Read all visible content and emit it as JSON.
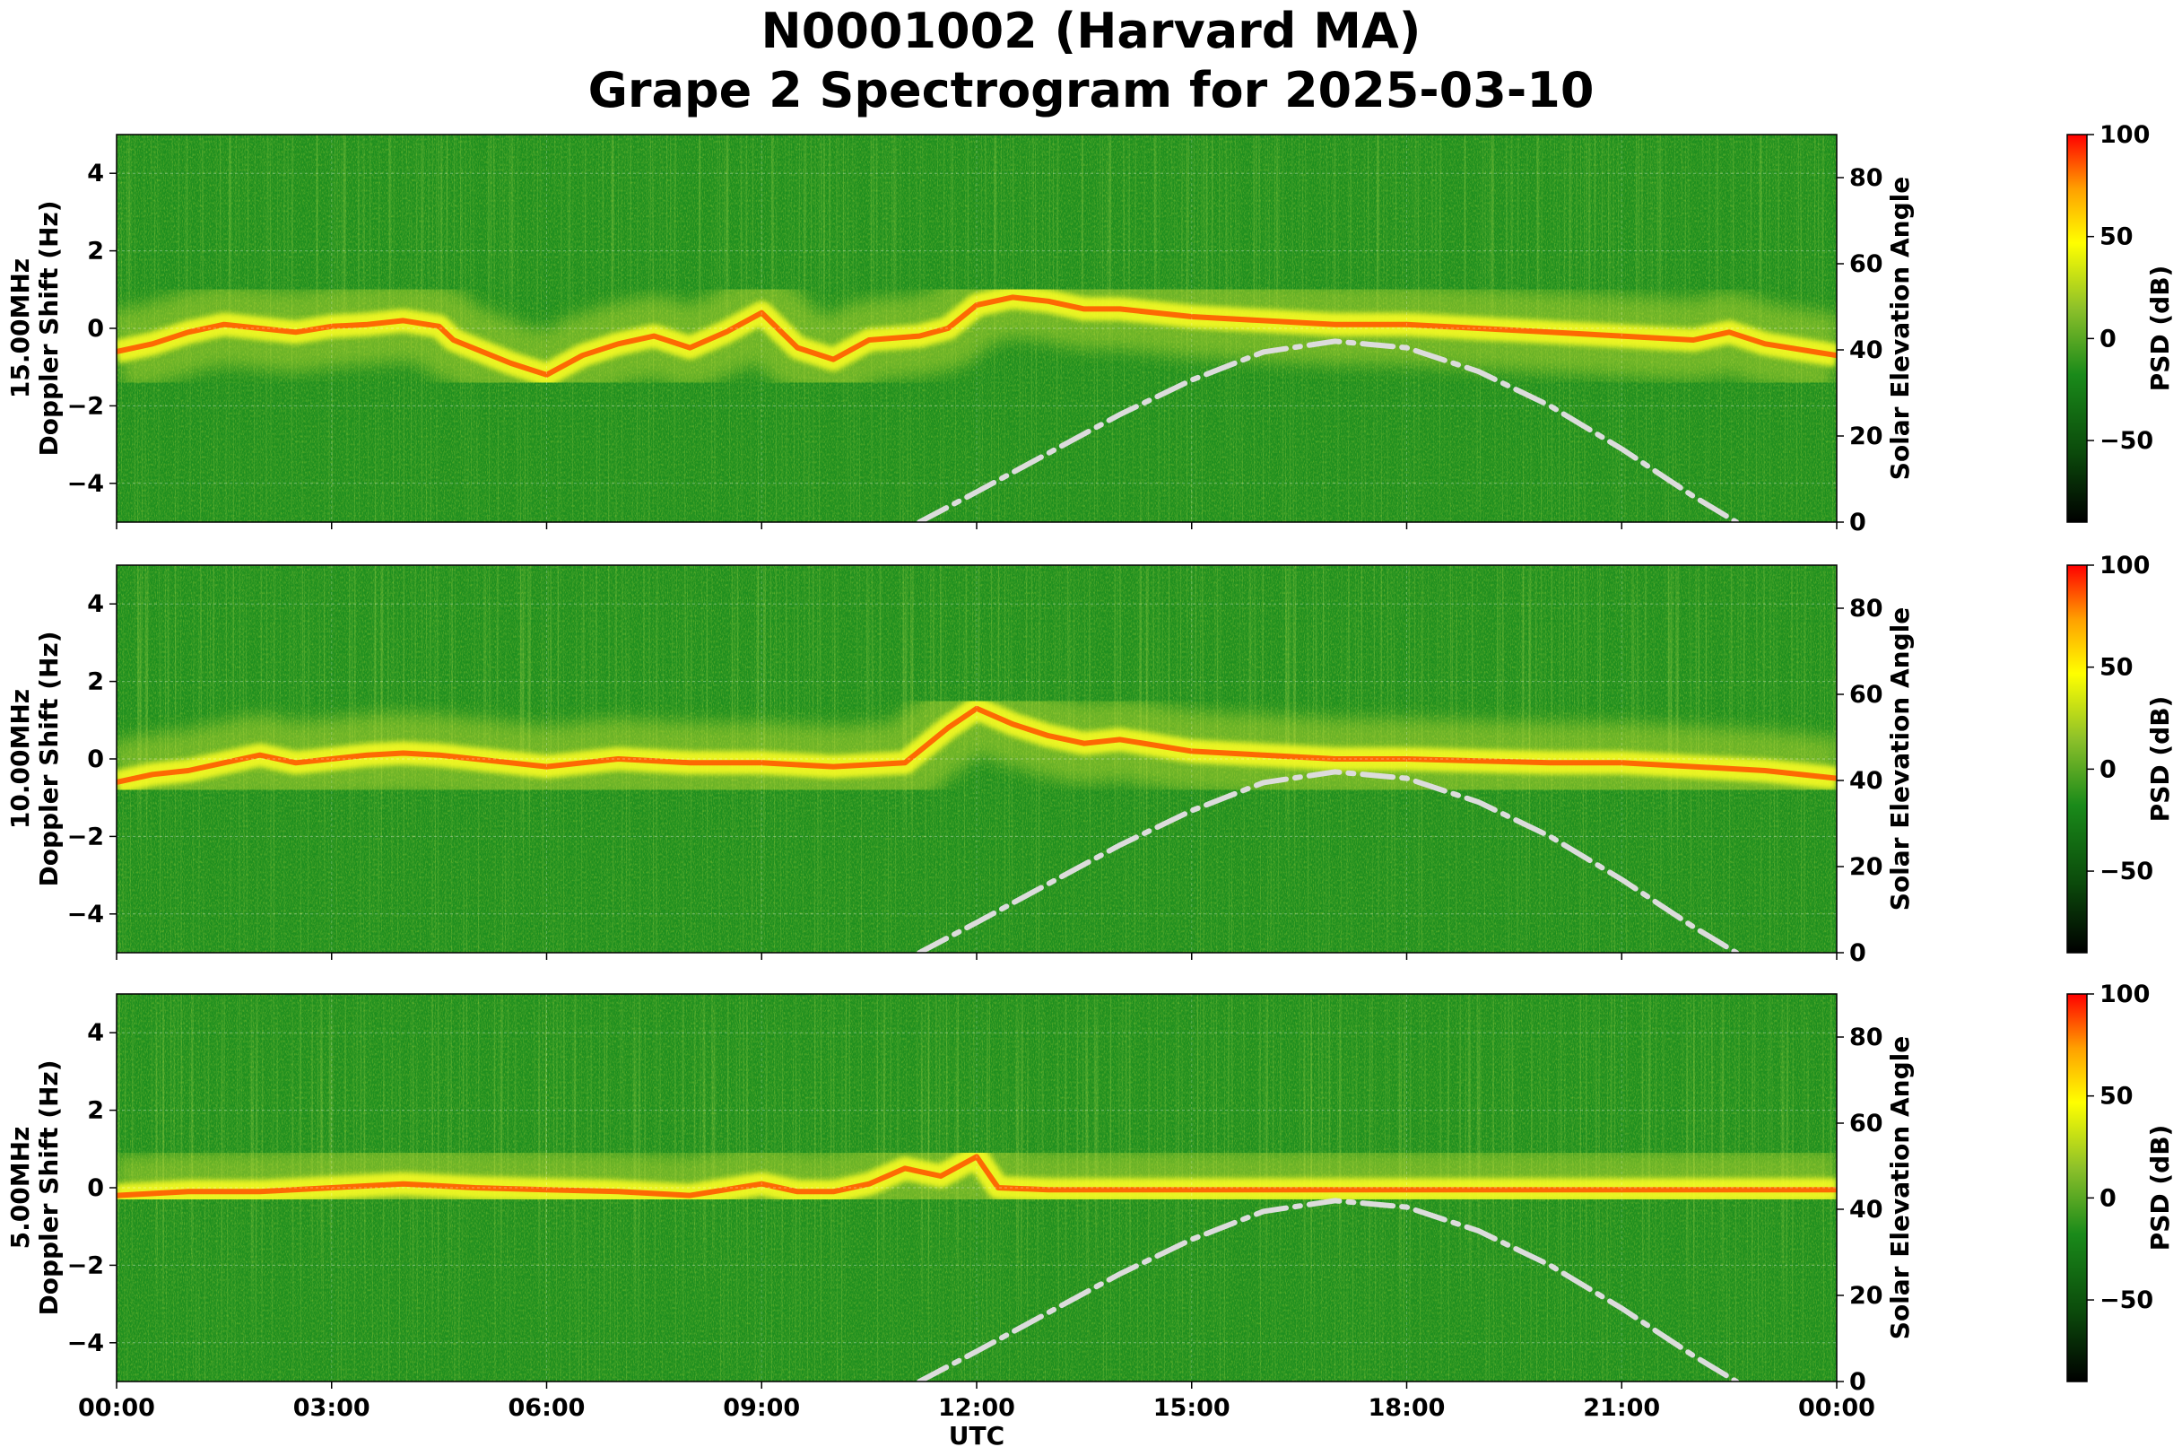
{
  "title": {
    "line1": "N0001002 (Harvard MA)",
    "line2": "Grape 2 Spectrogram for 2025-03-10"
  },
  "colors": {
    "colormap": [
      "#000000",
      "#0a5f0a",
      "#1a8f1a",
      "#7ab82a",
      "#ffff00",
      "#ff9900",
      "#ff0000"
    ],
    "solar_curve": "#dcdcdc",
    "background_green": "#1f8f1f"
  },
  "chart_data": [
    {
      "type": "heatmap",
      "panel_label": "15.00MHz",
      "ylabel": "Doppler Shift (Hz)",
      "y2label": "Solar Elevation Angle",
      "xlabel": "",
      "colorbar_label": "PSD (dB)",
      "ylim": [
        -5,
        5
      ],
      "y2lim": [
        0,
        90
      ],
      "clim": [
        -90,
        100
      ],
      "x_range_hours": [
        0,
        24
      ],
      "yticks": [
        -4,
        -2,
        0,
        2,
        4
      ],
      "y2ticks": [
        0,
        20,
        40,
        60,
        80
      ],
      "colorbar_ticks": [
        -50,
        0,
        50,
        100
      ],
      "grid": true,
      "doppler_trace_hz": [
        [
          0,
          -0.6
        ],
        [
          0.5,
          -0.4
        ],
        [
          1,
          -0.1
        ],
        [
          1.5,
          0.1
        ],
        [
          2,
          0
        ],
        [
          2.5,
          -0.1
        ],
        [
          3,
          0.05
        ],
        [
          3.5,
          0.1
        ],
        [
          4,
          0.2
        ],
        [
          4.5,
          0.05
        ],
        [
          4.7,
          -0.3
        ],
        [
          5.5,
          -0.9
        ],
        [
          6,
          -1.2
        ],
        [
          6.5,
          -0.7
        ],
        [
          7,
          -0.4
        ],
        [
          7.5,
          -0.2
        ],
        [
          8,
          -0.5
        ],
        [
          8.5,
          -0.1
        ],
        [
          9,
          0.4
        ],
        [
          9.5,
          -0.5
        ],
        [
          10,
          -0.8
        ],
        [
          10.5,
          -0.3
        ],
        [
          11.2,
          -0.2
        ],
        [
          11.6,
          0
        ],
        [
          12,
          0.6
        ],
        [
          12.5,
          0.8
        ],
        [
          13,
          0.7
        ],
        [
          13.5,
          0.5
        ],
        [
          14,
          0.5
        ],
        [
          15,
          0.3
        ],
        [
          16,
          0.2
        ],
        [
          17,
          0.1
        ],
        [
          18,
          0.1
        ],
        [
          19,
          0
        ],
        [
          20,
          -0.1
        ],
        [
          21,
          -0.2
        ],
        [
          22,
          -0.3
        ],
        [
          22.5,
          -0.1
        ],
        [
          23,
          -0.4
        ],
        [
          24,
          -0.7
        ]
      ],
      "solar_elevation_deg": [
        [
          11.2,
          0
        ],
        [
          12,
          7
        ],
        [
          13,
          16
        ],
        [
          14,
          25
        ],
        [
          15,
          33
        ],
        [
          16,
          39.5
        ],
        [
          17,
          42
        ],
        [
          18,
          40.5
        ],
        [
          19,
          35
        ],
        [
          20,
          27
        ],
        [
          21,
          17
        ],
        [
          22,
          6
        ],
        [
          22.6,
          0
        ]
      ]
    },
    {
      "type": "heatmap",
      "panel_label": "10.00MHz",
      "ylabel": "Doppler Shift (Hz)",
      "y2label": "Solar Elevation Angle",
      "xlabel": "",
      "colorbar_label": "PSD (dB)",
      "ylim": [
        -5,
        5
      ],
      "y2lim": [
        0,
        90
      ],
      "clim": [
        -90,
        100
      ],
      "x_range_hours": [
        0,
        24
      ],
      "yticks": [
        -4,
        -2,
        0,
        2,
        4
      ],
      "y2ticks": [
        0,
        20,
        40,
        60,
        80
      ],
      "colorbar_ticks": [
        -50,
        0,
        50,
        100
      ],
      "grid": true,
      "doppler_trace_hz": [
        [
          0,
          -0.6
        ],
        [
          0.5,
          -0.4
        ],
        [
          1,
          -0.3
        ],
        [
          1.5,
          -0.1
        ],
        [
          2,
          0.1
        ],
        [
          2.5,
          -0.1
        ],
        [
          3,
          0
        ],
        [
          3.5,
          0.1
        ],
        [
          4,
          0.15
        ],
        [
          4.5,
          0.1
        ],
        [
          5,
          0
        ],
        [
          5.5,
          -0.1
        ],
        [
          6,
          -0.2
        ],
        [
          6.5,
          -0.1
        ],
        [
          7,
          0
        ],
        [
          8,
          -0.1
        ],
        [
          9,
          -0.1
        ],
        [
          10,
          -0.2
        ],
        [
          11,
          -0.1
        ],
        [
          11.6,
          0.8
        ],
        [
          12,
          1.3
        ],
        [
          12.5,
          0.9
        ],
        [
          13,
          0.6
        ],
        [
          13.5,
          0.4
        ],
        [
          14,
          0.5
        ],
        [
          15,
          0.2
        ],
        [
          16,
          0.1
        ],
        [
          17,
          0
        ],
        [
          18,
          0
        ],
        [
          19,
          -0.05
        ],
        [
          20,
          -0.1
        ],
        [
          21,
          -0.1
        ],
        [
          22,
          -0.2
        ],
        [
          23,
          -0.3
        ],
        [
          24,
          -0.5
        ]
      ],
      "solar_elevation_deg": [
        [
          11.2,
          0
        ],
        [
          12,
          7
        ],
        [
          13,
          16
        ],
        [
          14,
          25
        ],
        [
          15,
          33
        ],
        [
          16,
          39.5
        ],
        [
          17,
          42
        ],
        [
          18,
          40.5
        ],
        [
          19,
          35
        ],
        [
          20,
          27
        ],
        [
          21,
          17
        ],
        [
          22,
          6
        ],
        [
          22.6,
          0
        ]
      ]
    },
    {
      "type": "heatmap",
      "panel_label": "5.00MHz",
      "ylabel": "Doppler Shift (Hz)",
      "y2label": "Solar Elevation Angle",
      "xlabel": "UTC",
      "colorbar_label": "PSD (dB)",
      "ylim": [
        -5,
        5
      ],
      "y2lim": [
        0,
        90
      ],
      "clim": [
        -90,
        100
      ],
      "x_range_hours": [
        0,
        24
      ],
      "xticks": [
        "00:00",
        "03:00",
        "06:00",
        "09:00",
        "12:00",
        "15:00",
        "18:00",
        "21:00",
        "00:00"
      ],
      "yticks": [
        -4,
        -2,
        0,
        2,
        4
      ],
      "y2ticks": [
        0,
        20,
        40,
        60,
        80
      ],
      "colorbar_ticks": [
        -50,
        0,
        50,
        100
      ],
      "grid": true,
      "doppler_trace_hz": [
        [
          0,
          -0.2
        ],
        [
          1,
          -0.1
        ],
        [
          2,
          -0.1
        ],
        [
          3,
          0
        ],
        [
          4,
          0.1
        ],
        [
          5,
          0
        ],
        [
          6,
          -0.05
        ],
        [
          7,
          -0.1
        ],
        [
          8,
          -0.2
        ],
        [
          9,
          0.1
        ],
        [
          9.5,
          -0.1
        ],
        [
          10,
          -0.1
        ],
        [
          10.5,
          0.1
        ],
        [
          11,
          0.5
        ],
        [
          11.5,
          0.3
        ],
        [
          12,
          0.8
        ],
        [
          12.3,
          0
        ],
        [
          13,
          -0.05
        ],
        [
          15,
          -0.05
        ],
        [
          18,
          -0.05
        ],
        [
          20,
          -0.05
        ],
        [
          22,
          -0.05
        ],
        [
          24,
          -0.05
        ]
      ],
      "solar_elevation_deg": [
        [
          11.2,
          0
        ],
        [
          12,
          7
        ],
        [
          13,
          16
        ],
        [
          14,
          25
        ],
        [
          15,
          33
        ],
        [
          16,
          39.5
        ],
        [
          17,
          42
        ],
        [
          18,
          40.5
        ],
        [
          19,
          35
        ],
        [
          20,
          27
        ],
        [
          21,
          17
        ],
        [
          22,
          6
        ],
        [
          22.6,
          0
        ]
      ]
    }
  ]
}
